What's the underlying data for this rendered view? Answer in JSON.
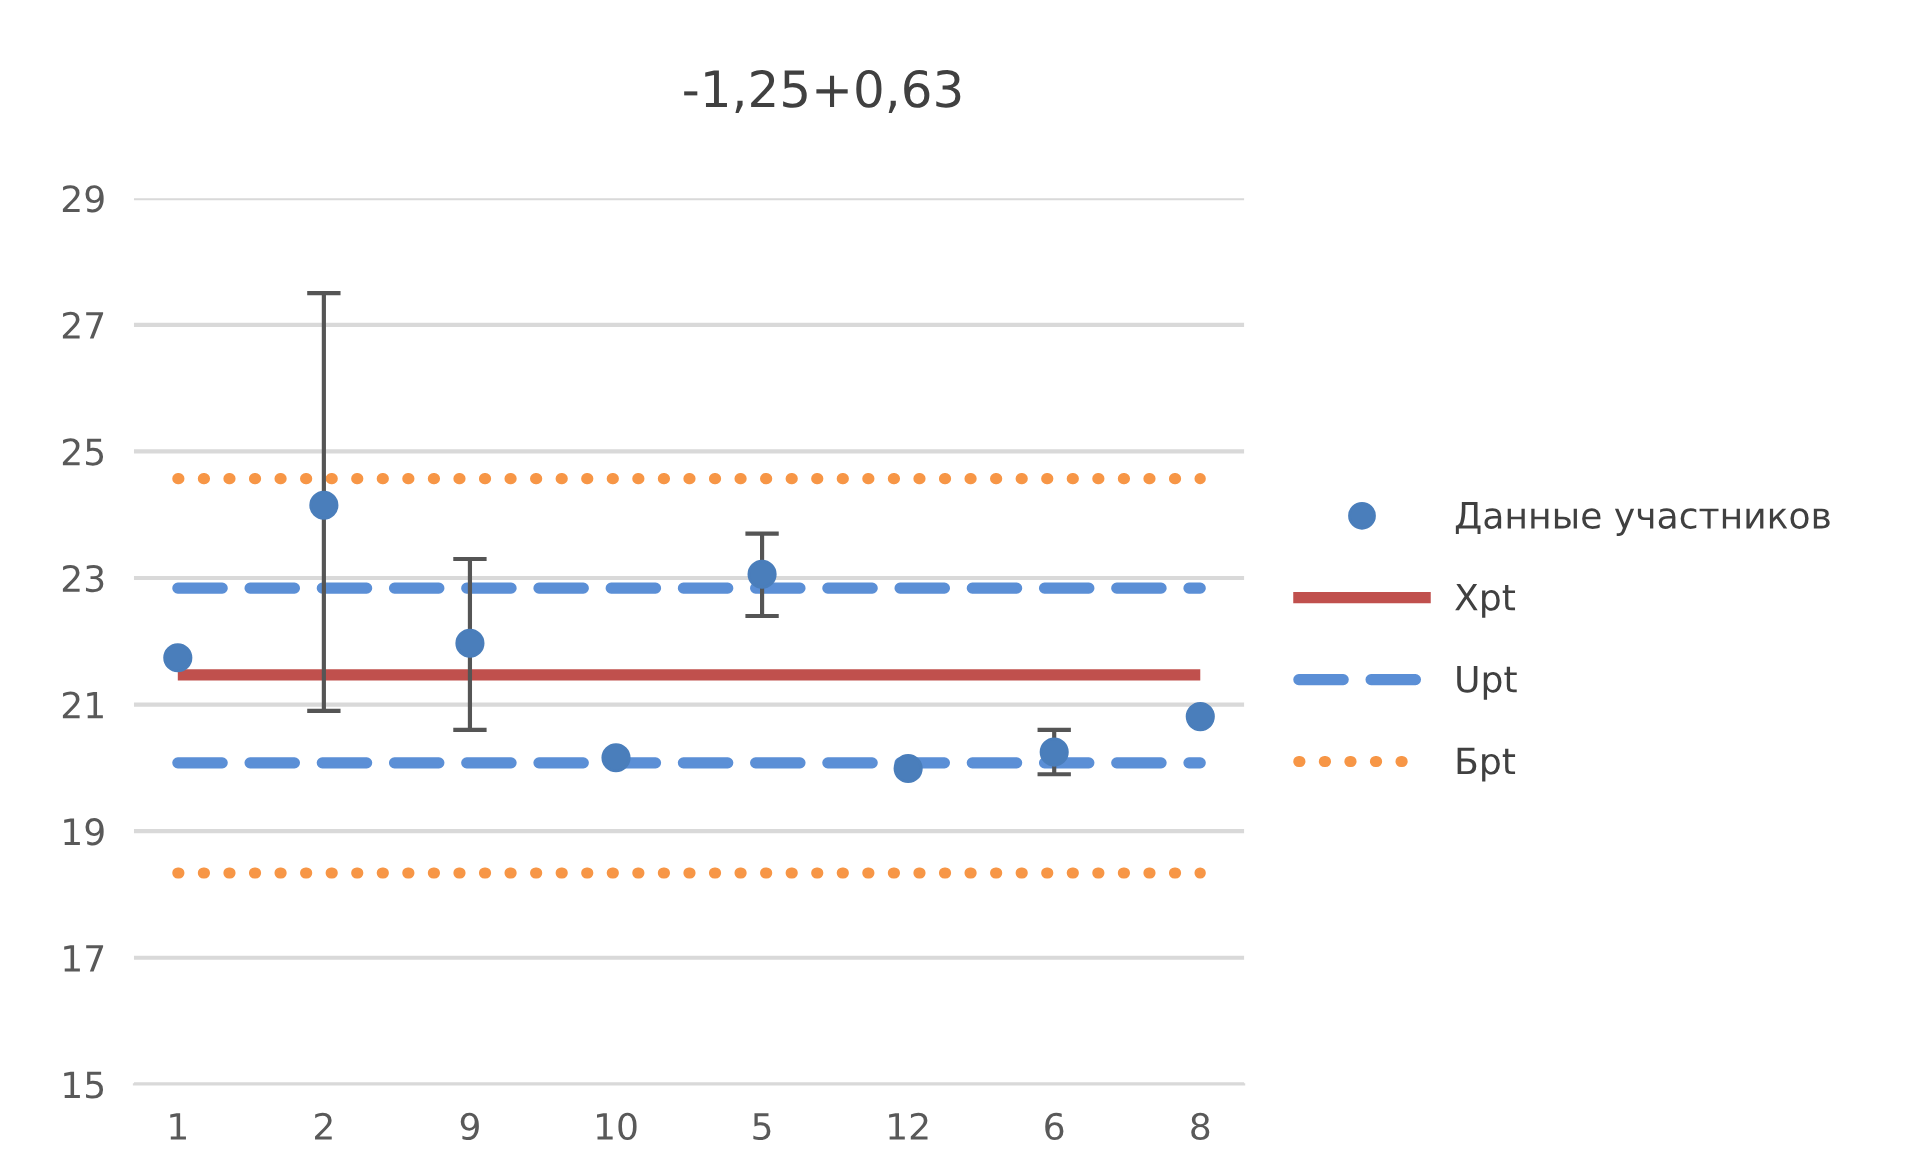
{
  "chart_data": {
    "type": "scatter",
    "title": "-1,25+0,63",
    "categories": [
      "1",
      "2",
      "9",
      "10",
      "5",
      "12",
      "6",
      "8"
    ],
    "series": [
      {
        "name": "Данные участников",
        "color": "#4a7ebb",
        "marker": "circle",
        "values": [
          21.74,
          24.15,
          21.97,
          20.16,
          23.06,
          19.99,
          20.25,
          20.81
        ],
        "errors": [
          null,
          [
            20.9,
            27.5
          ],
          [
            20.6,
            23.3
          ],
          null,
          [
            22.4,
            23.7
          ],
          null,
          [
            19.9,
            20.6
          ],
          null
        ]
      },
      {
        "name": "Xpt",
        "type": "line",
        "color": "#c0504d",
        "line_style": "solid",
        "marker": "none",
        "values": [
          21.47,
          21.47,
          21.47,
          21.47,
          21.47,
          21.47,
          21.47,
          21.47
        ]
      },
      {
        "name": "Upt",
        "type": "line",
        "color": "#5b8fd6",
        "line_style": "dashed",
        "marker": "none",
        "values": [
          22.84,
          22.84,
          22.84,
          22.84,
          22.84,
          22.84,
          22.84,
          22.84
        ]
      },
      {
        "type": "line",
        "color": "#5b8fd6",
        "line_style": "dashed",
        "marker": "none",
        "values": [
          20.08,
          20.08,
          20.08,
          20.08,
          20.08,
          20.08,
          20.08,
          20.08
        ]
      },
      {
        "name": "Бpt",
        "type": "line",
        "color": "#f79646",
        "line_style": "dotted",
        "marker": "none",
        "values": [
          24.57,
          24.57,
          24.57,
          24.57,
          24.57,
          24.57,
          24.57,
          24.57
        ]
      },
      {
        "type": "line",
        "color": "#f79646",
        "line_style": "dotted",
        "marker": "none",
        "values": [
          18.34,
          18.34,
          18.34,
          18.34,
          18.34,
          18.34,
          18.34,
          18.34
        ]
      }
    ],
    "ylim": [
      15,
      29
    ],
    "yticks": [
      15,
      17,
      19,
      21,
      23,
      25,
      27,
      29
    ],
    "grid": "y",
    "legend": "right"
  }
}
